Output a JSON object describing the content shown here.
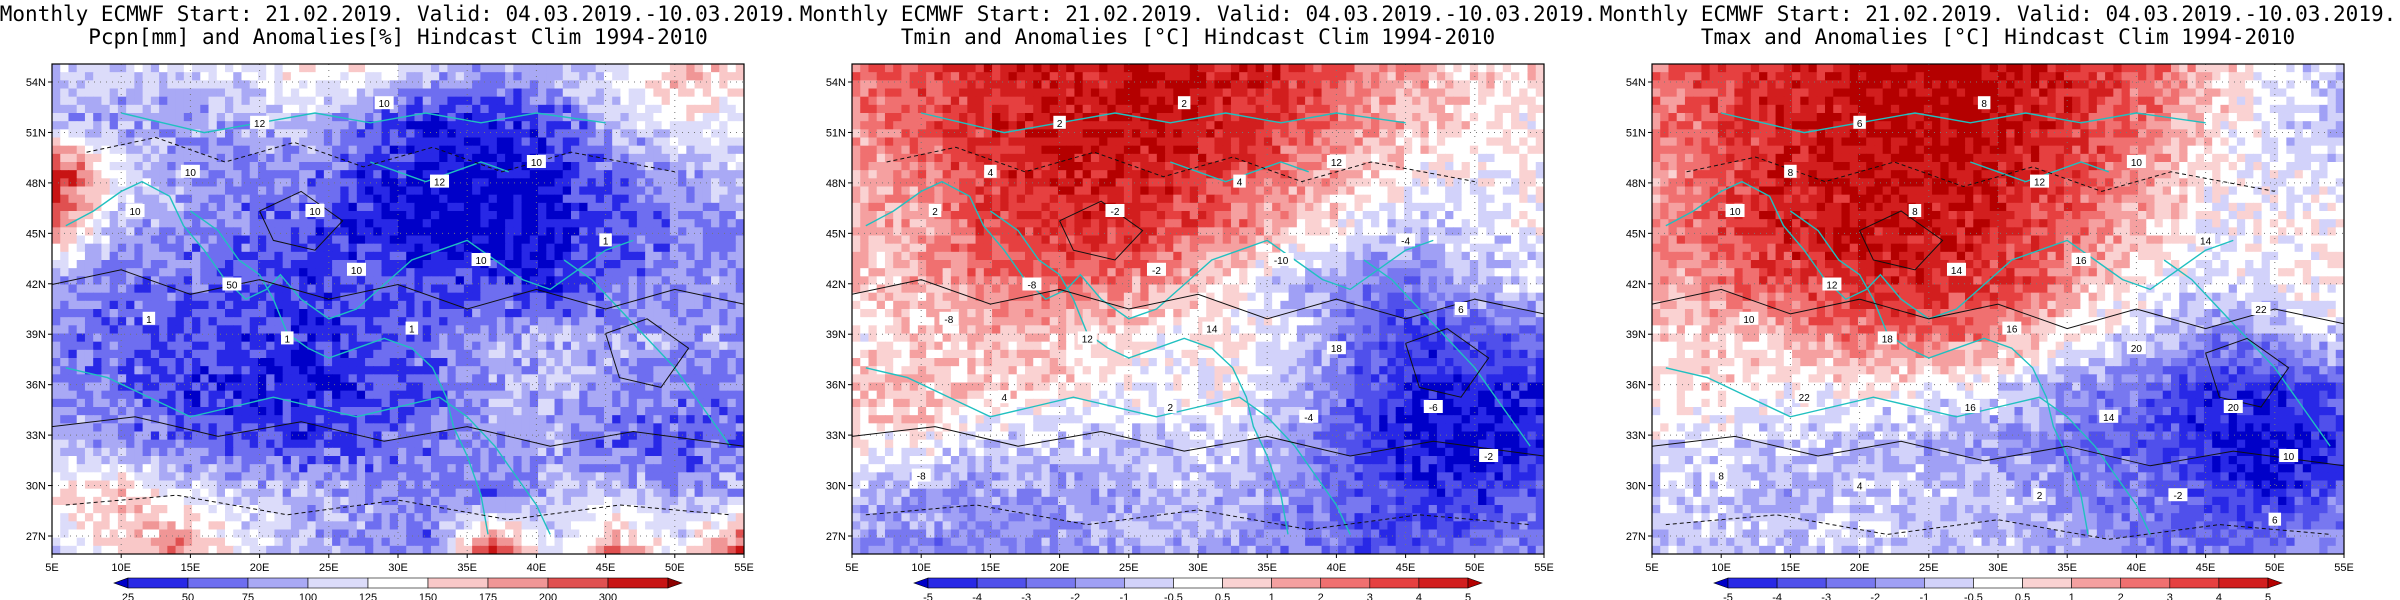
{
  "chart_data": [
    {
      "type": "heatmap",
      "title_line1": "Monthly ECMWF Start: 21.02.2019. Valid: 04.03.2019.-10.03.2019.",
      "title_line2": "Pcpn[mm] and Anomalies[%] Hindcast Clim 1994-2010",
      "x_ticks": [
        "5E",
        "10E",
        "15E",
        "20E",
        "25E",
        "30E",
        "35E",
        "40E",
        "45E",
        "50E",
        "55E"
      ],
      "y_ticks": [
        "54N",
        "51N",
        "48N",
        "45N",
        "42N",
        "39N",
        "36N",
        "33N",
        "30N",
        "27N"
      ],
      "colorbar_levels": [
        "25",
        "50",
        "75",
        "100",
        "125",
        "150",
        "175",
        "200",
        "300"
      ],
      "colorbar_colors": [
        "#0000c8",
        "#2828e6",
        "#6e6ef0",
        "#a9a9f5",
        "#dcdcfa",
        "#ffffff",
        "#f9c8c8",
        "#f09696",
        "#e05050",
        "#c81414",
        "#8c0000"
      ],
      "contour_labels": [
        "10",
        "12",
        "10",
        "10",
        "10",
        "12",
        "10",
        "50",
        "10",
        "10",
        "1",
        "1",
        "1",
        "1"
      ],
      "field": [
        [
          0.42,
          0.38,
          0.4,
          0.45,
          0.55,
          0.5,
          0.38,
          0.3,
          0.35,
          0.45,
          0.62,
          0.6
        ],
        [
          0.35,
          0.3,
          0.28,
          0.32,
          0.36,
          0.22,
          0.1,
          0.12,
          0.18,
          0.35,
          0.5,
          0.45
        ],
        [
          0.88,
          0.5,
          0.3,
          0.25,
          0.28,
          0.15,
          0.08,
          0.06,
          0.1,
          0.22,
          0.3,
          0.4
        ],
        [
          0.7,
          0.35,
          0.28,
          0.22,
          0.18,
          0.12,
          0.05,
          0.04,
          0.08,
          0.18,
          0.25,
          0.3
        ],
        [
          0.3,
          0.25,
          0.22,
          0.18,
          0.15,
          0.2,
          0.18,
          0.15,
          0.1,
          0.2,
          0.3,
          0.28
        ],
        [
          0.25,
          0.2,
          0.18,
          0.16,
          0.12,
          0.18,
          0.22,
          0.3,
          0.35,
          0.3,
          0.32,
          0.3
        ],
        [
          0.28,
          0.22,
          0.15,
          0.12,
          0.1,
          0.15,
          0.2,
          0.32,
          0.35,
          0.28,
          0.25,
          0.25
        ],
        [
          0.35,
          0.28,
          0.22,
          0.18,
          0.15,
          0.2,
          0.25,
          0.3,
          0.3,
          0.22,
          0.2,
          0.22
        ],
        [
          0.55,
          0.62,
          0.45,
          0.4,
          0.35,
          0.3,
          0.28,
          0.22,
          0.35,
          0.4,
          0.3,
          0.35
        ],
        [
          0.4,
          0.55,
          0.72,
          0.45,
          0.35,
          0.3,
          0.25,
          0.85,
          0.4,
          0.7,
          0.45,
          0.8
        ]
      ]
    },
    {
      "type": "heatmap",
      "title_line1": "Monthly ECMWF Start: 21.02.2019. Valid: 04.03.2019.-10.03.2019.",
      "title_line2": "Tmin and Anomalies [°C] Hindcast Clim 1994-2010",
      "x_ticks": [
        "5E",
        "10E",
        "15E",
        "20E",
        "25E",
        "30E",
        "35E",
        "40E",
        "45E",
        "50E",
        "55E"
      ],
      "y_ticks": [
        "54N",
        "51N",
        "48N",
        "45N",
        "42N",
        "39N",
        "36N",
        "33N",
        "30N",
        "27N"
      ],
      "colorbar_levels": [
        "-5",
        "-4",
        "-3",
        "-2",
        "-1",
        "-0.5",
        "0.5",
        "1",
        "2",
        "3",
        "4",
        "5"
      ],
      "colorbar_colors": [
        "#0000c8",
        "#2828e6",
        "#5050eb",
        "#7878f0",
        "#a0a0f5",
        "#d2d2fa",
        "#ffffff",
        "#fad2d2",
        "#f5a0a0",
        "#f07070",
        "#e64040",
        "#d21e1e",
        "#b40000"
      ],
      "contour_labels": [
        "2",
        "2",
        "4",
        "2",
        "-2",
        "4",
        "12",
        "-8",
        "-2",
        "-10",
        "-4",
        "-8",
        "12",
        "14",
        "18",
        "6",
        "4",
        "2",
        "-4",
        "-6",
        "-2",
        "-8"
      ],
      "field": [
        [
          0.72,
          0.8,
          0.85,
          0.9,
          0.92,
          0.95,
          0.9,
          0.85,
          0.75,
          0.65,
          0.55,
          0.55
        ],
        [
          0.68,
          0.78,
          0.85,
          0.9,
          0.92,
          0.92,
          0.88,
          0.8,
          0.7,
          0.6,
          0.55,
          0.52
        ],
        [
          0.62,
          0.7,
          0.82,
          0.88,
          0.9,
          0.88,
          0.82,
          0.72,
          0.6,
          0.52,
          0.5,
          0.5
        ],
        [
          0.6,
          0.66,
          0.78,
          0.85,
          0.85,
          0.8,
          0.72,
          0.6,
          0.5,
          0.4,
          0.45,
          0.48
        ],
        [
          0.58,
          0.62,
          0.7,
          0.75,
          0.72,
          0.65,
          0.55,
          0.4,
          0.3,
          0.25,
          0.4,
          0.45
        ],
        [
          0.52,
          0.55,
          0.6,
          0.62,
          0.55,
          0.5,
          0.52,
          0.45,
          0.25,
          0.15,
          0.2,
          0.25
        ],
        [
          0.6,
          0.62,
          0.58,
          0.55,
          0.5,
          0.48,
          0.5,
          0.4,
          0.22,
          0.1,
          0.08,
          0.12
        ],
        [
          0.55,
          0.5,
          0.45,
          0.42,
          0.4,
          0.42,
          0.45,
          0.35,
          0.2,
          0.08,
          0.05,
          0.1
        ],
        [
          0.38,
          0.35,
          0.32,
          0.32,
          0.35,
          0.4,
          0.38,
          0.3,
          0.22,
          0.15,
          0.12,
          0.25
        ],
        [
          0.32,
          0.3,
          0.3,
          0.32,
          0.35,
          0.38,
          0.35,
          0.28,
          0.22,
          0.2,
          0.25,
          0.3
        ]
      ]
    },
    {
      "type": "heatmap",
      "title_line1": "Monthly ECMWF Start: 21.02.2019. Valid: 04.03.2019.-10.03.2019.",
      "title_line2": "Tmax and Anomalies [°C] Hindcast Clim 1994-2010",
      "x_ticks": [
        "5E",
        "10E",
        "15E",
        "20E",
        "25E",
        "30E",
        "35E",
        "40E",
        "45E",
        "50E",
        "55E"
      ],
      "y_ticks": [
        "54N",
        "51N",
        "48N",
        "45N",
        "42N",
        "39N",
        "36N",
        "33N",
        "30N",
        "27N"
      ],
      "colorbar_levels": [
        "-5",
        "-4",
        "-3",
        "-2",
        "-1",
        "-0.5",
        "0.5",
        "1",
        "2",
        "3",
        "4",
        "5"
      ],
      "colorbar_colors": [
        "#0000c8",
        "#2828e6",
        "#5050eb",
        "#7878f0",
        "#a0a0f5",
        "#d2d2fa",
        "#ffffff",
        "#fad2d2",
        "#f5a0a0",
        "#f07070",
        "#e64040",
        "#d21e1e",
        "#b40000"
      ],
      "contour_labels": [
        "8",
        "6",
        "8",
        "10",
        "8",
        "12",
        "10",
        "12",
        "14",
        "16",
        "14",
        "10",
        "18",
        "16",
        "20",
        "22",
        "22",
        "16",
        "14",
        "20",
        "10",
        "8",
        "4",
        "2",
        "-2",
        "6"
      ],
      "field": [
        [
          0.72,
          0.82,
          0.88,
          0.92,
          0.95,
          0.95,
          0.92,
          0.85,
          0.75,
          0.6,
          0.48,
          0.4
        ],
        [
          0.7,
          0.8,
          0.88,
          0.92,
          0.95,
          0.95,
          0.9,
          0.82,
          0.7,
          0.55,
          0.45,
          0.4
        ],
        [
          0.65,
          0.78,
          0.88,
          0.92,
          0.95,
          0.92,
          0.88,
          0.78,
          0.65,
          0.52,
          0.48,
          0.45
        ],
        [
          0.68,
          0.8,
          0.88,
          0.92,
          0.92,
          0.9,
          0.82,
          0.7,
          0.58,
          0.48,
          0.5,
          0.52
        ],
        [
          0.62,
          0.7,
          0.8,
          0.85,
          0.88,
          0.85,
          0.78,
          0.62,
          0.5,
          0.45,
          0.5,
          0.55
        ],
        [
          0.55,
          0.58,
          0.62,
          0.7,
          0.75,
          0.72,
          0.62,
          0.5,
          0.4,
          0.3,
          0.35,
          0.45
        ],
        [
          0.52,
          0.55,
          0.52,
          0.5,
          0.5,
          0.48,
          0.4,
          0.32,
          0.22,
          0.12,
          0.1,
          0.2
        ],
        [
          0.45,
          0.45,
          0.42,
          0.4,
          0.38,
          0.35,
          0.3,
          0.25,
          0.2,
          0.1,
          0.05,
          0.12
        ],
        [
          0.42,
          0.4,
          0.38,
          0.4,
          0.42,
          0.4,
          0.38,
          0.3,
          0.25,
          0.15,
          0.12,
          0.25
        ],
        [
          0.4,
          0.4,
          0.42,
          0.45,
          0.42,
          0.4,
          0.38,
          0.32,
          0.28,
          0.25,
          0.3,
          0.35
        ]
      ]
    }
  ]
}
